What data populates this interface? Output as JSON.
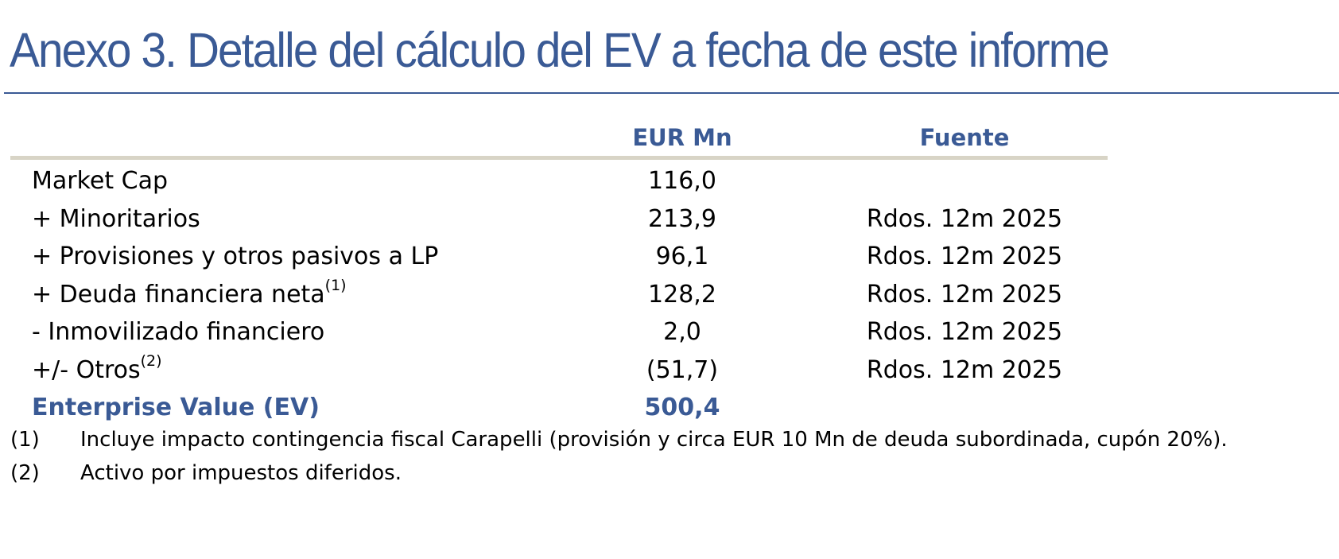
{
  "title": "Anexo 3. Detalle del cálculo del EV a fecha de este informe",
  "colors": {
    "accent": "#3a5a95",
    "header_rule": "#d8d4c6",
    "text": "#000000"
  },
  "table": {
    "headers": {
      "label": "",
      "value": "EUR Mn",
      "source": "Fuente"
    },
    "rows": [
      {
        "label": "Market Cap",
        "sup": "",
        "value": "116,0",
        "source": ""
      },
      {
        "label": "+ Minoritarios",
        "sup": "",
        "value": "213,9",
        "source": "Rdos. 12m 2025"
      },
      {
        "label": "+ Provisiones y otros pasivos a LP",
        "sup": "",
        "value": "96,1",
        "source": "Rdos. 12m 2025"
      },
      {
        "label": "+ Deuda financiera neta",
        "sup": "(1)",
        "value": "128,2",
        "source": "Rdos. 12m 2025"
      },
      {
        "label": "- Inmovilizado financiero",
        "sup": "",
        "value": "2,0",
        "source": "Rdos. 12m 2025"
      },
      {
        "label": "+/- Otros",
        "sup": "(2)",
        "value": "(51,7)",
        "source": "Rdos. 12m 2025"
      }
    ],
    "total": {
      "label": "Enterprise Value (EV)",
      "value": "500,4",
      "source": ""
    }
  },
  "notes": [
    {
      "num": "(1)",
      "text": "Incluye impacto contingencia fiscal Carapelli (provisión y circa EUR 10 Mn de deuda subordinada, cupón 20%)."
    },
    {
      "num": "(2)",
      "text": "Activo por impuestos diferidos."
    }
  ]
}
